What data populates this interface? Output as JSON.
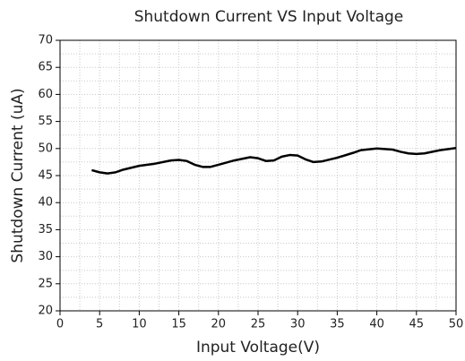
{
  "chart_data": {
    "type": "line",
    "title": "Shutdown Current VS Input Voltage",
    "x_label": "Input Voltage(V)",
    "y_label": "Shutdown Current (uA)",
    "xlim": [
      0,
      50
    ],
    "xticks": [
      0,
      5,
      10,
      15,
      20,
      25,
      30,
      35,
      40,
      45,
      50
    ],
    "ylim": [
      20,
      70
    ],
    "yticks": [
      20,
      25,
      30,
      35,
      40,
      45,
      50,
      55,
      60,
      65,
      70
    ],
    "grid": true,
    "series": [
      {
        "name": "Shutdown Current",
        "color": "#000000",
        "x": [
          4,
          5,
          6,
          7,
          8,
          10,
          12,
          14,
          15,
          16,
          17,
          18,
          19,
          20,
          22,
          24,
          25,
          26,
          27,
          28,
          29,
          30,
          31,
          32,
          33,
          35,
          37,
          38,
          40,
          42,
          43,
          44,
          45,
          46,
          48,
          50
        ],
        "values": [
          46,
          45.6,
          45.4,
          45.6,
          46.1,
          46.8,
          47.2,
          47.8,
          47.9,
          47.7,
          47,
          46.6,
          46.6,
          47,
          47.8,
          48.4,
          48.2,
          47.7,
          47.8,
          48.5,
          48.8,
          48.7,
          48,
          47.5,
          47.6,
          48.3,
          49.2,
          49.7,
          50,
          49.8,
          49.4,
          49.1,
          49,
          49.1,
          49.7,
          50.1
        ]
      }
    ]
  }
}
